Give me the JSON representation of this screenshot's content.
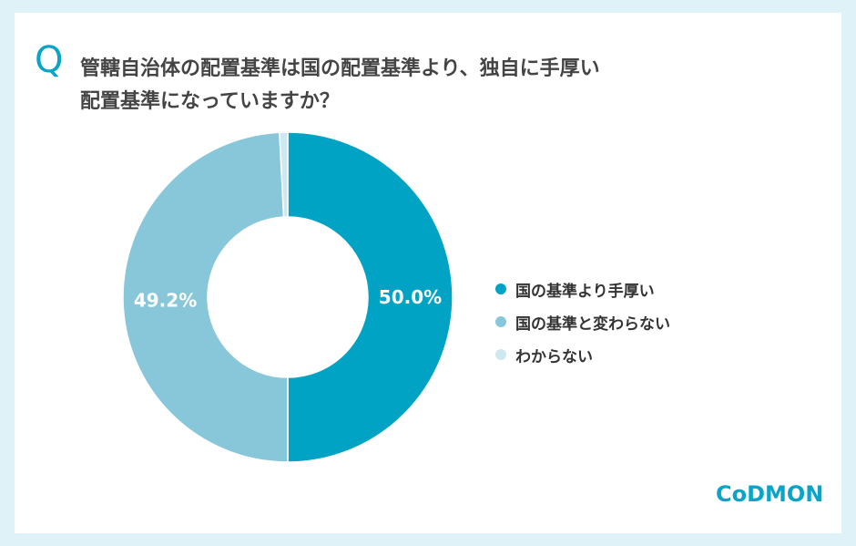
{
  "question": {
    "mark": "Q",
    "text": "管轄自治体の配置基準は国の配置基準より、独自に手厚い\n配置基準になっていますか？"
  },
  "chart_data": {
    "type": "pie",
    "style": "donut",
    "categories": [
      "国の基準より手厚い",
      "国の基準と変わらない",
      "わからない"
    ],
    "values": [
      50.0,
      49.2,
      0.8
    ],
    "data_labels": [
      "50.0%",
      "49.2%",
      ""
    ],
    "colors": [
      "#00a3c4",
      "#88c7d9",
      "#cfe7ef"
    ],
    "legend_position": "right"
  },
  "logo": {
    "text": "CoDMON"
  }
}
